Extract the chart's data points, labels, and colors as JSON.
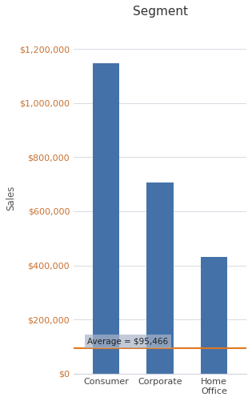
{
  "title": "Segment",
  "categories": [
    "Consumer",
    "Corporate",
    "Home\nOffice"
  ],
  "values": [
    1148061,
    706146,
    430678
  ],
  "bar_color": "#4472A8",
  "ylabel": "Sales",
  "ylim": [
    0,
    1300000
  ],
  "yticks": [
    0,
    200000,
    400000,
    600000,
    800000,
    1000000,
    1200000
  ],
  "average_value": 95466,
  "average_label": "Average = $95,466",
  "average_line_color": "#E07820",
  "average_label_bg": "#A8B4C8",
  "grid_color": "#D0D4DC",
  "background_color": "#FFFFFF",
  "title_fontsize": 11,
  "title_color": "#333333",
  "axis_label_fontsize": 8.5,
  "axis_label_color": "#555555",
  "ytick_color": "#C87030",
  "xtick_color": "#444444",
  "tick_fontsize": 8,
  "avg_label_fontsize": 7.5,
  "bar_width": 0.5
}
